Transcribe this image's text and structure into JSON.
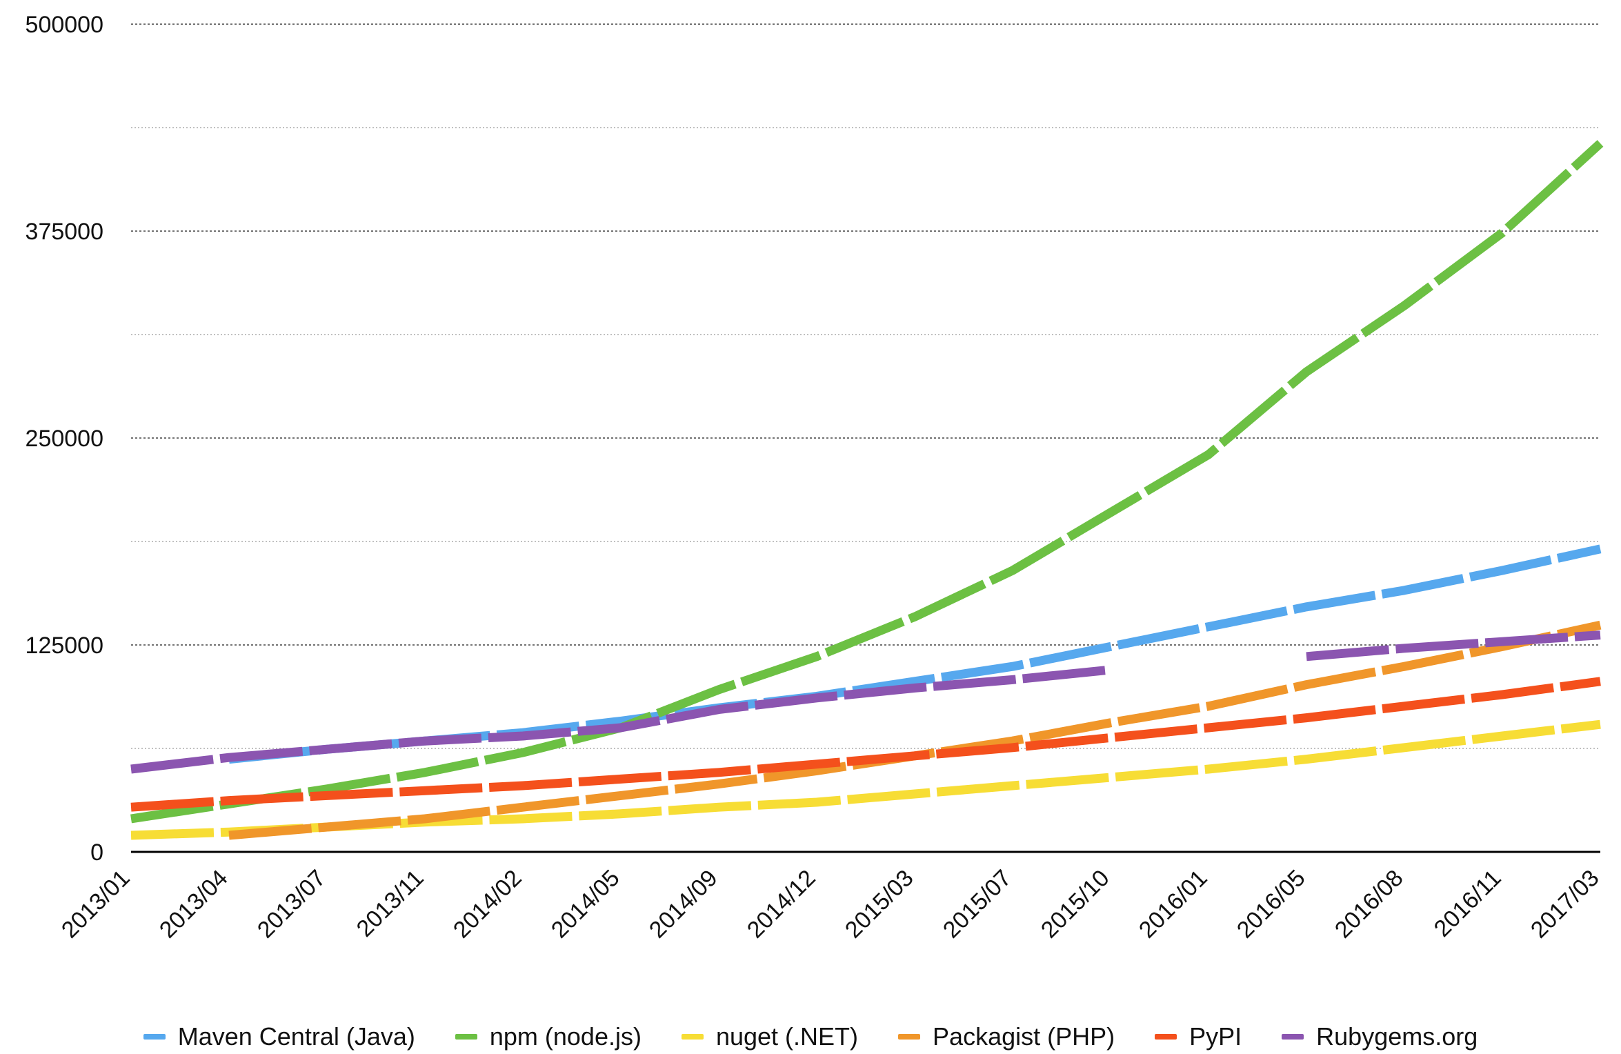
{
  "chart_data": {
    "type": "line",
    "title": "",
    "xlabel": "",
    "ylabel": "",
    "ylim": [
      0,
      500000
    ],
    "y_ticks": [
      0,
      125000,
      250000,
      375000,
      500000
    ],
    "y_tick_labels": [
      "0",
      "125000",
      "250000",
      "375000",
      "500000"
    ],
    "x_tick_labels": [
      "2013/01",
      "2013/04",
      "2013/07",
      "2013/11",
      "2014/02",
      "2014/05",
      "2014/09",
      "2014/12",
      "2015/03",
      "2015/07",
      "2015/10",
      "2016/01",
      "2016/05",
      "2016/08",
      "2016/11",
      "2017/03"
    ],
    "grid": "horizontal dotted",
    "legend_position": "bottom",
    "series": [
      {
        "name": "Maven Central (Java)",
        "color": "#56A8EE",
        "x": [
          "2013/04",
          "2013/07",
          "2013/11",
          "2014/02",
          "2014/05",
          "2014/09",
          "2014/12",
          "2015/03",
          "2015/07",
          "2015/10",
          "2016/01",
          "2016/05",
          "2016/08",
          "2016/11",
          "2017/03"
        ],
        "y": [
          56000,
          62000,
          67000,
          72000,
          79000,
          87000,
          94000,
          103000,
          112000,
          124000,
          136000,
          148000,
          158000,
          170000,
          183000
        ]
      },
      {
        "name": "npm (node.js)",
        "color": "#6CC043",
        "x": [
          "2013/01",
          "2013/04",
          "2013/07",
          "2013/11",
          "2014/02",
          "2014/05",
          "2014/09",
          "2014/12",
          "2015/03",
          "2015/07",
          "2015/10",
          "2016/01",
          "2016/05",
          "2016/08",
          "2016/11",
          "2017/03"
        ],
        "y": [
          20000,
          29000,
          38000,
          48000,
          60000,
          75000,
          98000,
          118000,
          142000,
          170000,
          205000,
          240000,
          290000,
          330000,
          374000,
          428000
        ]
      },
      {
        "name": "nuget (.NET)",
        "color": "#F7DD35",
        "x": [
          "2013/01",
          "2013/04",
          "2013/07",
          "2013/11",
          "2014/02",
          "2014/05",
          "2014/09",
          "2014/12",
          "2015/03",
          "2015/07",
          "2015/10",
          "2016/01",
          "2016/05",
          "2016/08",
          "2016/11",
          "2017/03"
        ],
        "y": [
          10000,
          12000,
          15000,
          18000,
          20000,
          23000,
          27000,
          30000,
          35000,
          40000,
          45000,
          50000,
          56000,
          63000,
          70000,
          77000
        ]
      },
      {
        "name": "Packagist (PHP)",
        "color": "#F0962A",
        "x": [
          "2013/04",
          "2013/07",
          "2013/11",
          "2014/02",
          "2014/05",
          "2014/09",
          "2014/12",
          "2015/03",
          "2015/07",
          "2015/10",
          "2016/01",
          "2016/05",
          "2016/08",
          "2016/11",
          "2017/03"
        ],
        "y": [
          10000,
          15000,
          20000,
          27000,
          34000,
          41000,
          49000,
          58000,
          67000,
          78000,
          88000,
          101000,
          112000,
          124000,
          137000
        ]
      },
      {
        "name": "PyPI",
        "color": "#F4501C",
        "x": [
          "2013/01",
          "2013/04",
          "2013/07",
          "2013/11",
          "2014/02",
          "2014/05",
          "2014/09",
          "2014/12",
          "2015/03",
          "2015/07",
          "2015/10",
          "2016/01",
          "2016/05",
          "2016/08",
          "2016/11",
          "2017/03"
        ],
        "y": [
          27000,
          31000,
          34000,
          37000,
          40000,
          44000,
          48000,
          53000,
          58000,
          63000,
          69000,
          75000,
          81000,
          88000,
          95000,
          103000
        ]
      },
      {
        "name": "Rubygems.org",
        "color": "#8B55B0",
        "x": [
          "2013/01",
          "2013/04",
          "2013/07",
          "2013/11",
          "2014/02",
          "2014/05",
          "2014/09",
          "2014/12",
          "2015/03",
          "2015/07",
          "2015/10",
          "2016/01",
          "2016/05",
          "2016/08",
          "2016/11",
          "2017/03"
        ],
        "y": [
          50000,
          57000,
          62000,
          67000,
          70000,
          75000,
          86000,
          93000,
          99000,
          104000,
          110000,
          null,
          118000,
          123000,
          127000,
          131000
        ]
      }
    ]
  }
}
